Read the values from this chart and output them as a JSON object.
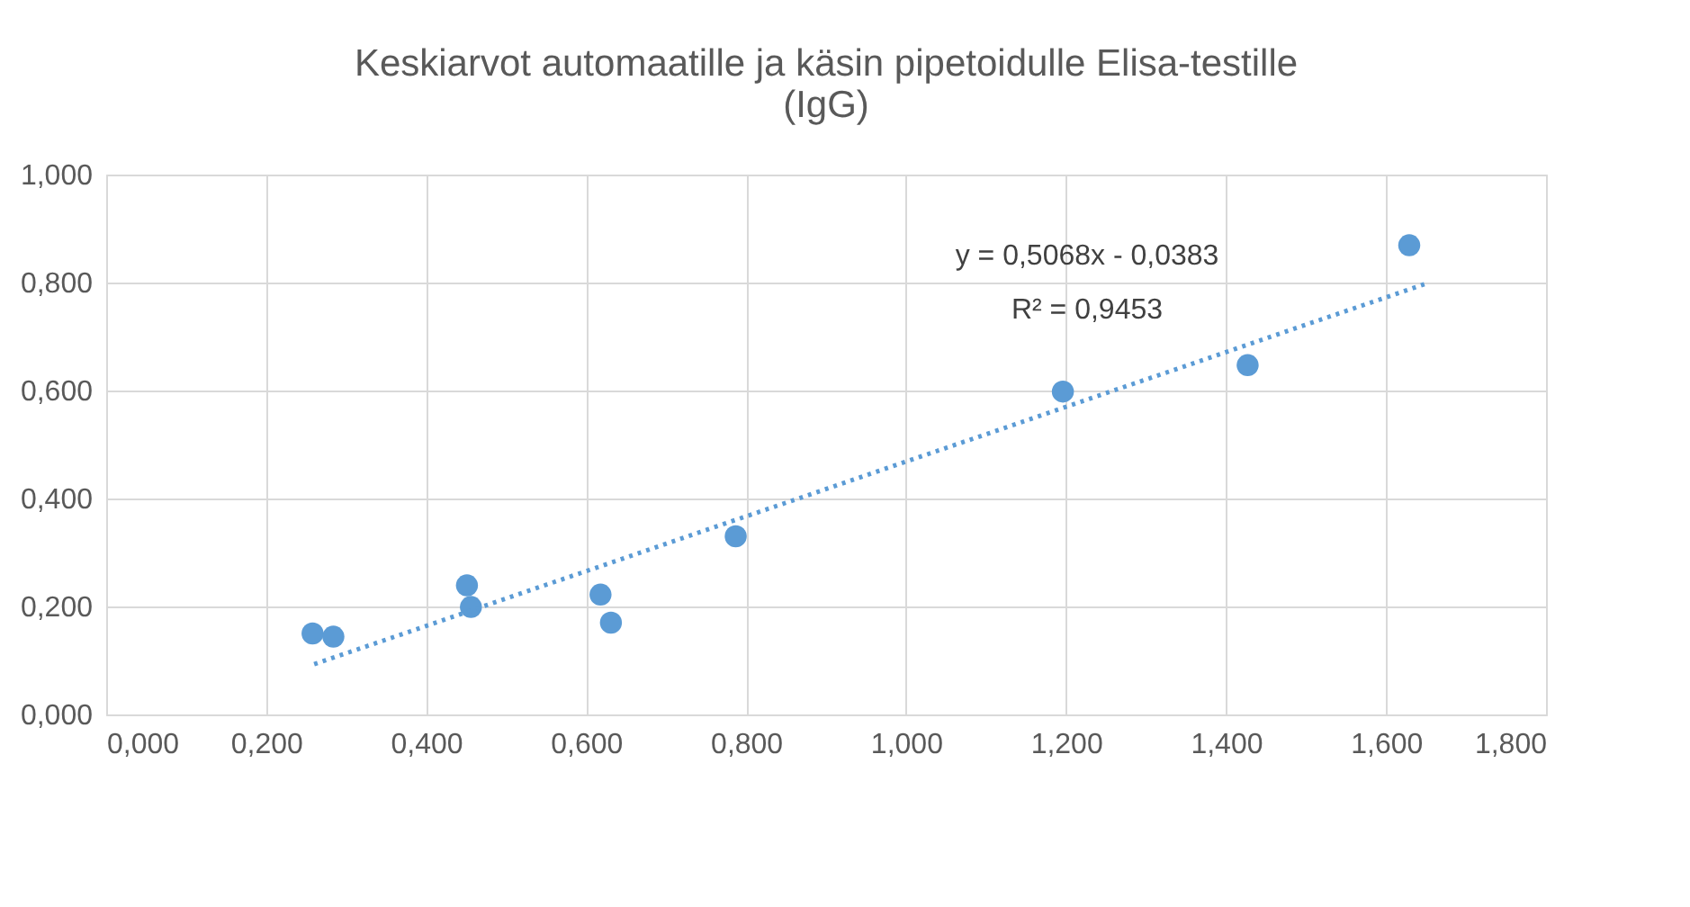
{
  "chart_data": {
    "type": "scatter",
    "title": "Keskiarvot automaatille ja käsin pipetoidulle Elisa-testille\n(IgG)",
    "series": [
      {
        "color": "#5b9bd5",
        "marker": "circle",
        "x": [
          0.258,
          0.284,
          0.451,
          0.456,
          0.618,
          0.631,
          0.787,
          1.196,
          1.427,
          1.629
        ],
        "values": [
          0.15,
          0.144,
          0.239,
          0.199,
          0.222,
          0.17,
          0.33,
          0.598,
          0.647,
          0.869
        ]
      },
      {
        "type": "line",
        "color": "#5b9bd5",
        "line_style": "dotted",
        "marker": "none",
        "x": [
          0.26,
          1.65
        ],
        "values": [
          0.093,
          0.798
        ]
      }
    ],
    "annotations": [
      "y = 0,5068x - 0,0383",
      "R² = 0,9453"
    ],
    "xlim": [
      0,
      1.8
    ],
    "ylim": [
      0,
      1.0
    ],
    "xticks": [
      {
        "value": 0,
        "label": "0,000"
      },
      {
        "value": 0.2,
        "label": "0,200"
      },
      {
        "value": 0.4,
        "label": "0,400"
      },
      {
        "value": 0.6,
        "label": "0,600"
      },
      {
        "value": 0.8,
        "label": "0,800"
      },
      {
        "value": 1.0,
        "label": "1,000"
      },
      {
        "value": 1.2,
        "label": "1,200"
      },
      {
        "value": 1.4,
        "label": "1,400"
      },
      {
        "value": 1.6,
        "label": "1,600"
      },
      {
        "value": 1.8,
        "label": "1,800"
      }
    ],
    "yticks": [
      {
        "value": 0,
        "label": "0,000"
      },
      {
        "value": 0.2,
        "label": "0,200"
      },
      {
        "value": 0.4,
        "label": "0,400"
      },
      {
        "value": 0.6,
        "label": "0,600"
      },
      {
        "value": 0.8,
        "label": "0,800"
      },
      {
        "value": 1.0,
        "label": "1,000"
      }
    ],
    "grid": true
  }
}
